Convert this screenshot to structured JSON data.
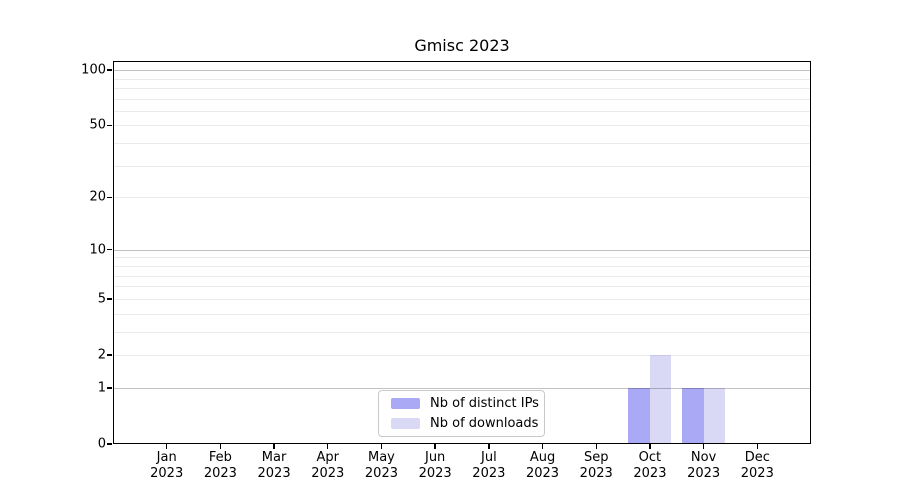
{
  "title": "Gmisc 2023",
  "colors": {
    "background": "#ffffff",
    "axis": "#000000",
    "grid_major": "rgba(0,0,0,0.24)",
    "grid_minor": "rgba(0,0,0,0.08)",
    "legend_border": "#c9c9c9",
    "bar_distinct_ips": "#a9a9f5",
    "bar_downloads": "#d9d9f6"
  },
  "legend": {
    "position": "lower center",
    "items": [
      {
        "label": "Nb of distinct IPs",
        "color": "#a9a9f5"
      },
      {
        "label": "Nb of downloads",
        "color": "#d9d9f6"
      }
    ]
  },
  "chart_data": {
    "type": "bar",
    "title": "Gmisc 2023",
    "categories": [
      "Jan 2023",
      "Feb 2023",
      "Mar 2023",
      "Apr 2023",
      "May 2023",
      "Jun 2023",
      "Jul 2023",
      "Aug 2023",
      "Sep 2023",
      "Oct 2023",
      "Nov 2023",
      "Dec 2023"
    ],
    "series": [
      {
        "name": "Nb of distinct IPs",
        "color": "#a9a9f5",
        "values": [
          0,
          0,
          0,
          0,
          0,
          0,
          0,
          0,
          0,
          1,
          1,
          0
        ]
      },
      {
        "name": "Nb of downloads",
        "color": "#d9d9f6",
        "values": [
          0,
          0,
          0,
          0,
          0,
          0,
          0,
          0,
          0,
          2,
          1,
          0
        ]
      }
    ],
    "y_ticks": [
      0,
      1,
      2,
      5,
      10,
      20,
      50,
      100
    ],
    "y_minor_gridlines": [
      3,
      4,
      6,
      7,
      8,
      9,
      30,
      40,
      60,
      70,
      80,
      90
    ],
    "y_major_gridlines": [
      1,
      10,
      100
    ],
    "y_scale": "log1p",
    "ylim": [
      0,
      112
    ],
    "xlabel": "",
    "ylabel": "",
    "grid": "on",
    "legend_position": "lower center"
  }
}
